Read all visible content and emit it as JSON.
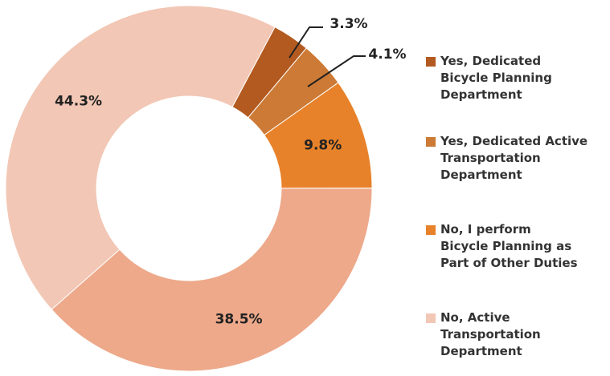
{
  "chart_data": {
    "type": "donut",
    "categories": [
      "Yes, Dedicated Bicycle Planning Department",
      "Yes, Dedicated Active Transportation Department",
      "No, I perform Bicycle Planning as Part of Other Duties",
      null,
      "No, Active Transportation Department"
    ],
    "values": [
      3.3,
      4.1,
      9.8,
      38.5,
      44.3
    ],
    "value_labels": [
      "3.3%",
      "4.1%",
      "9.8%",
      "38.5%",
      "44.3%"
    ],
    "colors": [
      "#b35a20",
      "#cc7a35",
      "#e8822a",
      "#eda98a",
      "#f2c7b5"
    ]
  }
}
